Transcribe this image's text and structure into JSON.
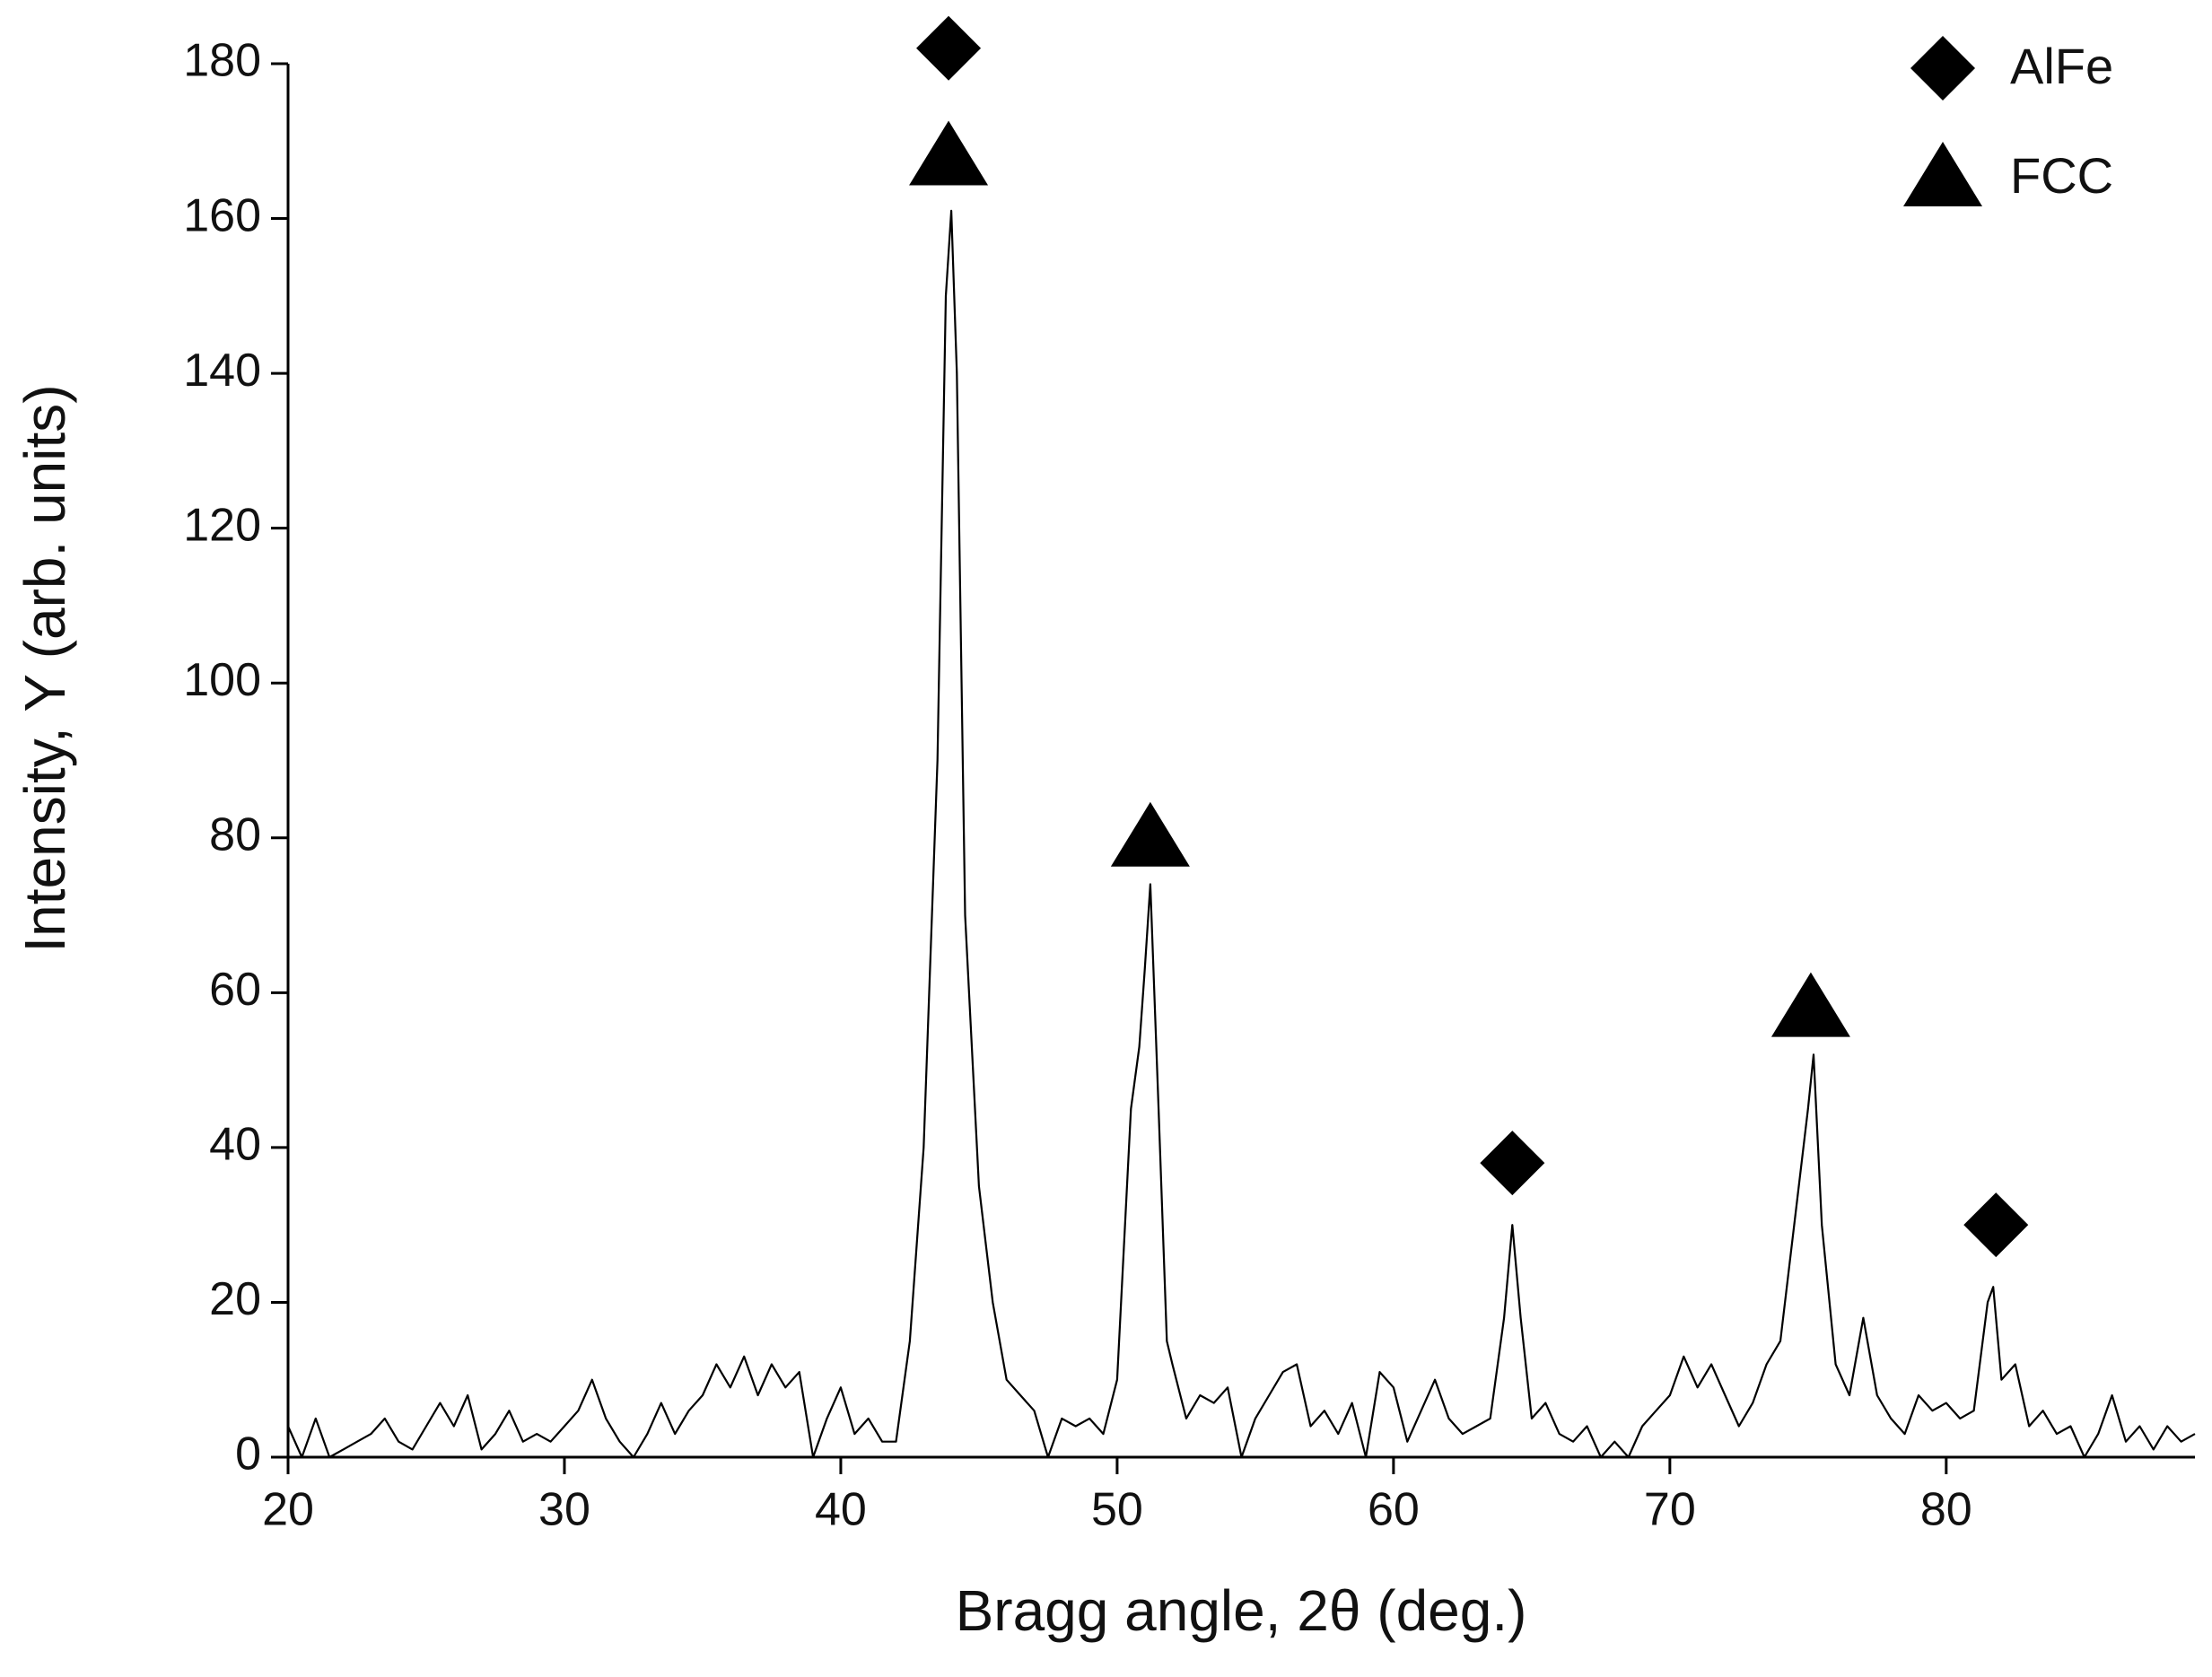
{
  "chart_data": {
    "type": "line",
    "x_label": "Bragg angle, 2θ (deg.)",
    "y_label": "Intensity, Y (arb. units)",
    "xlim": [
      20,
      89
    ],
    "ylim": [
      0,
      180
    ],
    "xticks": [
      20,
      30,
      40,
      50,
      60,
      70,
      80
    ],
    "yticks": [
      0,
      20,
      40,
      60,
      80,
      100,
      120,
      140,
      160,
      180
    ],
    "legend": "upper right",
    "series": [
      {
        "type": "line",
        "color": "#000000",
        "x": [
          20,
          20.5,
          21,
          21.5,
          22,
          22.5,
          23,
          23.5,
          24,
          24.5,
          25,
          25.5,
          26,
          26.5,
          27,
          27.5,
          28,
          28.5,
          29,
          29.5,
          30,
          30.5,
          31,
          31.5,
          32,
          32.5,
          33,
          33.5,
          34,
          34.5,
          35,
          35.5,
          36,
          36.5,
          37,
          37.5,
          38,
          38.5,
          39,
          39.5,
          40,
          40.5,
          41,
          41.5,
          42,
          42.5,
          43,
          43.5,
          43.8,
          44,
          44.2,
          44.5,
          45,
          45.5,
          46,
          46.5,
          47,
          47.5,
          48,
          48.5,
          49,
          49.5,
          50,
          50.5,
          50.8,
          51,
          51.2,
          51.5,
          51.8,
          52,
          52.5,
          53,
          53.5,
          54,
          54.5,
          55,
          55.5,
          56,
          56.5,
          57,
          57.5,
          58,
          58.5,
          59,
          59.5,
          60,
          60.5,
          61,
          61.5,
          62,
          62.5,
          63,
          63.5,
          64,
          64.3,
          64.6,
          65,
          65.5,
          66,
          66.5,
          67,
          67.5,
          68,
          68.5,
          69,
          69.5,
          70,
          70.5,
          71,
          71.5,
          72,
          72.5,
          73,
          73.5,
          74,
          74.5,
          75,
          75.2,
          75.5,
          76,
          76.5,
          77,
          77.5,
          78,
          78.5,
          79,
          79.5,
          80,
          80.5,
          81,
          81.5,
          81.7,
          82,
          82.5,
          83,
          83.5,
          84,
          84.5,
          85,
          85.5,
          86,
          86.5,
          87,
          87.5,
          88,
          88.5,
          89
        ],
        "values": [
          4,
          0,
          5,
          0,
          1,
          2,
          3,
          5,
          2,
          1,
          4,
          7,
          4,
          8,
          1,
          3,
          6,
          2,
          3,
          2,
          4,
          6,
          10,
          5,
          2,
          0,
          3,
          7,
          3,
          6,
          8,
          12,
          9,
          13,
          8,
          12,
          9,
          11,
          0,
          5,
          9,
          3,
          5,
          2,
          2,
          15,
          40,
          90,
          150,
          161,
          140,
          70,
          35,
          20,
          10,
          8,
          6,
          0,
          5,
          4,
          5,
          3,
          10,
          45,
          53,
          63,
          74,
          45,
          15,
          12,
          5,
          8,
          7,
          9,
          0,
          5,
          8,
          11,
          12,
          4,
          6,
          3,
          7,
          0,
          11,
          9,
          2,
          6,
          10,
          5,
          3,
          4,
          5,
          18,
          30,
          18,
          5,
          7,
          3,
          2,
          4,
          0,
          2,
          0,
          4,
          6,
          8,
          13,
          9,
          12,
          8,
          4,
          7,
          12,
          15,
          30,
          45,
          52,
          30,
          12,
          8,
          18,
          8,
          5,
          3,
          8,
          6,
          7,
          5,
          6,
          20,
          22,
          10,
          12,
          4,
          6,
          3,
          4,
          0,
          3,
          8,
          2,
          4,
          1,
          4,
          2,
          3
        ]
      },
      {
        "type": "scatter",
        "name": "AlFe",
        "marker": "diamond",
        "color": "#000000",
        "x": [
          43.9,
          64.3,
          81.8
        ],
        "values": [
          182,
          38,
          30
        ]
      },
      {
        "type": "scatter",
        "name": "FCC",
        "marker": "triangle",
        "color": "#000000",
        "x": [
          43.9,
          51.2,
          75.1
        ],
        "values": [
          168,
          80,
          58
        ]
      }
    ]
  }
}
